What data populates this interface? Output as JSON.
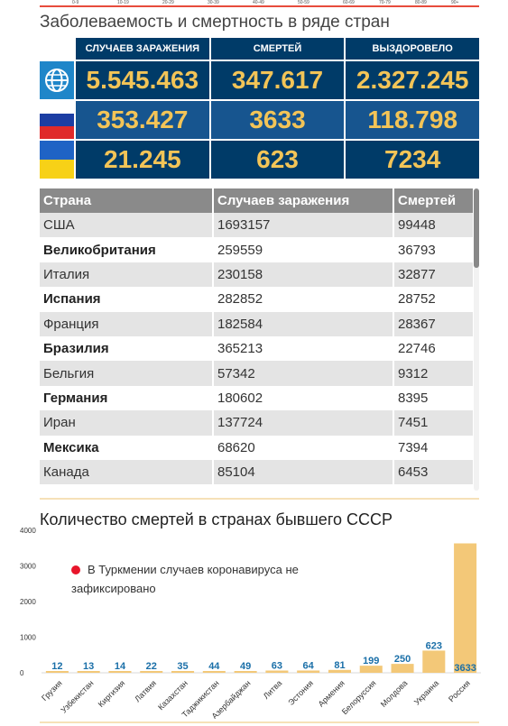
{
  "top_axis": {
    "ticks": [
      "0-9",
      "10-19",
      "20-29",
      "30-39",
      "40-49",
      "50-59",
      "60-69",
      "70-79",
      "80-89",
      "90+"
    ]
  },
  "title": "Заболеваемость и смертность в ряде стран",
  "stats": {
    "headers": [
      "СЛУЧАЕВ ЗАРАЖЕНИЯ",
      "СМЕРТЕЙ",
      "ВЫЗДОРОВЕЛО"
    ],
    "rows": [
      {
        "flag": "globe-icon",
        "cases": "5.545.463",
        "deaths": "347.617",
        "recovered": "2.327.245"
      },
      {
        "flag": "russia-flag",
        "cases": "353.427",
        "deaths": "3633",
        "recovered": "118.798"
      },
      {
        "flag": "ukraine-flag",
        "cases": "21.245",
        "deaths": "623",
        "recovered": "7234"
      }
    ]
  },
  "table": {
    "headers": [
      "Страна",
      "Случаев заражения",
      "Смертей"
    ],
    "rows": [
      {
        "country": "США",
        "cases": "1693157",
        "deaths": "99448"
      },
      {
        "country": "Великобритания",
        "cases": "259559",
        "deaths": "36793"
      },
      {
        "country": "Италия",
        "cases": "230158",
        "deaths": "32877"
      },
      {
        "country": "Испания",
        "cases": "282852",
        "deaths": "28752"
      },
      {
        "country": "Франция",
        "cases": "182584",
        "deaths": "28367"
      },
      {
        "country": "Бразилия",
        "cases": "365213",
        "deaths": "22746"
      },
      {
        "country": "Бельгия",
        "cases": "57342",
        "deaths": "9312"
      },
      {
        "country": "Германия",
        "cases": "180602",
        "deaths": "8395"
      },
      {
        "country": "Иран",
        "cases": "137724",
        "deaths": "7451"
      },
      {
        "country": "Мексика",
        "cases": "68620",
        "deaths": "7394"
      },
      {
        "country": "Канада",
        "cases": "85104",
        "deaths": "6453"
      }
    ]
  },
  "chart_title": "Количество смертей в странах бывшего СССР",
  "note": "В Туркмении случаев коронавируса не зафиксировано",
  "colors": {
    "bar": "#f3c878",
    "value_label": "#1a6fa8",
    "note_dot": "#e8152b"
  },
  "chart_data": {
    "type": "bar",
    "categories": [
      "Грузия",
      "Узбекистан",
      "Киргизия",
      "Латвия",
      "Казахстан",
      "Таджикистан",
      "Азербайджан",
      "Литва",
      "Эстония",
      "Армения",
      "Белоруссия",
      "Молдова",
      "Украина",
      "Россия"
    ],
    "values": [
      12,
      13,
      14,
      22,
      35,
      44,
      49,
      63,
      64,
      81,
      199,
      250,
      623,
      3633
    ],
    "ylim": [
      0,
      4000
    ],
    "yticks": [
      "0",
      "1000",
      "2000",
      "3000",
      "4000"
    ],
    "ytick_values": [
      0,
      1000,
      2000,
      3000,
      4000
    ],
    "grid": false,
    "legend": "none"
  }
}
